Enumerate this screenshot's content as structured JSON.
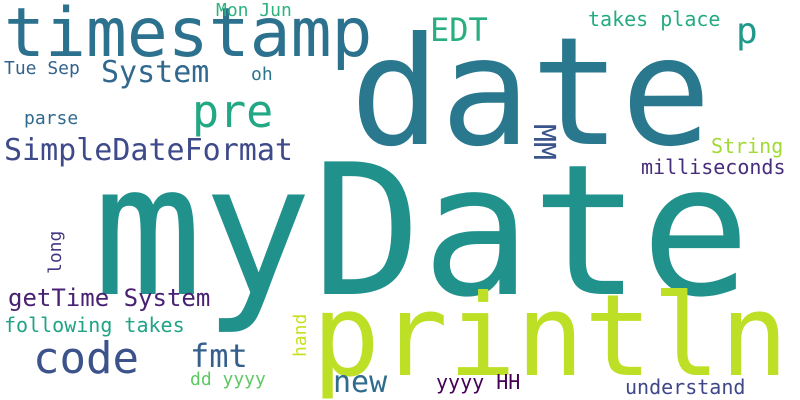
{
  "words": [
    {
      "text": "myDate",
      "color": "#21918c"
    },
    {
      "text": "date",
      "color": "#2a788e"
    },
    {
      "text": "println",
      "color": "#bddf26"
    },
    {
      "text": "timestamp",
      "color": "#2c728e"
    },
    {
      "text": "code",
      "color": "#3b528b"
    },
    {
      "text": "pre",
      "color": "#22a884"
    },
    {
      "text": "SimpleDateFormat",
      "color": "#3e4a89"
    },
    {
      "text": "System",
      "color": "#31688e"
    },
    {
      "text": "fmt",
      "color": "#35608d"
    },
    {
      "text": "new",
      "color": "#2f6c8e"
    },
    {
      "text": "getTime System",
      "color": "#482173"
    },
    {
      "text": "EDT",
      "color": "#29af7f"
    },
    {
      "text": "p",
      "color": "#1f9a8a"
    },
    {
      "text": "MM",
      "color": "#3a548c"
    },
    {
      "text": "following takes",
      "color": "#20a386"
    },
    {
      "text": "takes place",
      "color": "#25ab82"
    },
    {
      "text": "milliseconds",
      "color": "#472d7b"
    },
    {
      "text": "Mon Jun",
      "color": "#2db27d"
    },
    {
      "text": "Tue Sep",
      "color": "#33638d"
    },
    {
      "text": "oh",
      "color": "#2a768e"
    },
    {
      "text": "parse",
      "color": "#31688e"
    },
    {
      "text": "String",
      "color": "#a2da37"
    },
    {
      "text": "long",
      "color": "#453781"
    },
    {
      "text": "hand",
      "color": "#c8e020"
    },
    {
      "text": "dd yyyy",
      "color": "#5ec962"
    },
    {
      "text": "yyyy HH",
      "color": "#440154"
    },
    {
      "text": "understand",
      "color": "#3f4788"
    }
  ]
}
